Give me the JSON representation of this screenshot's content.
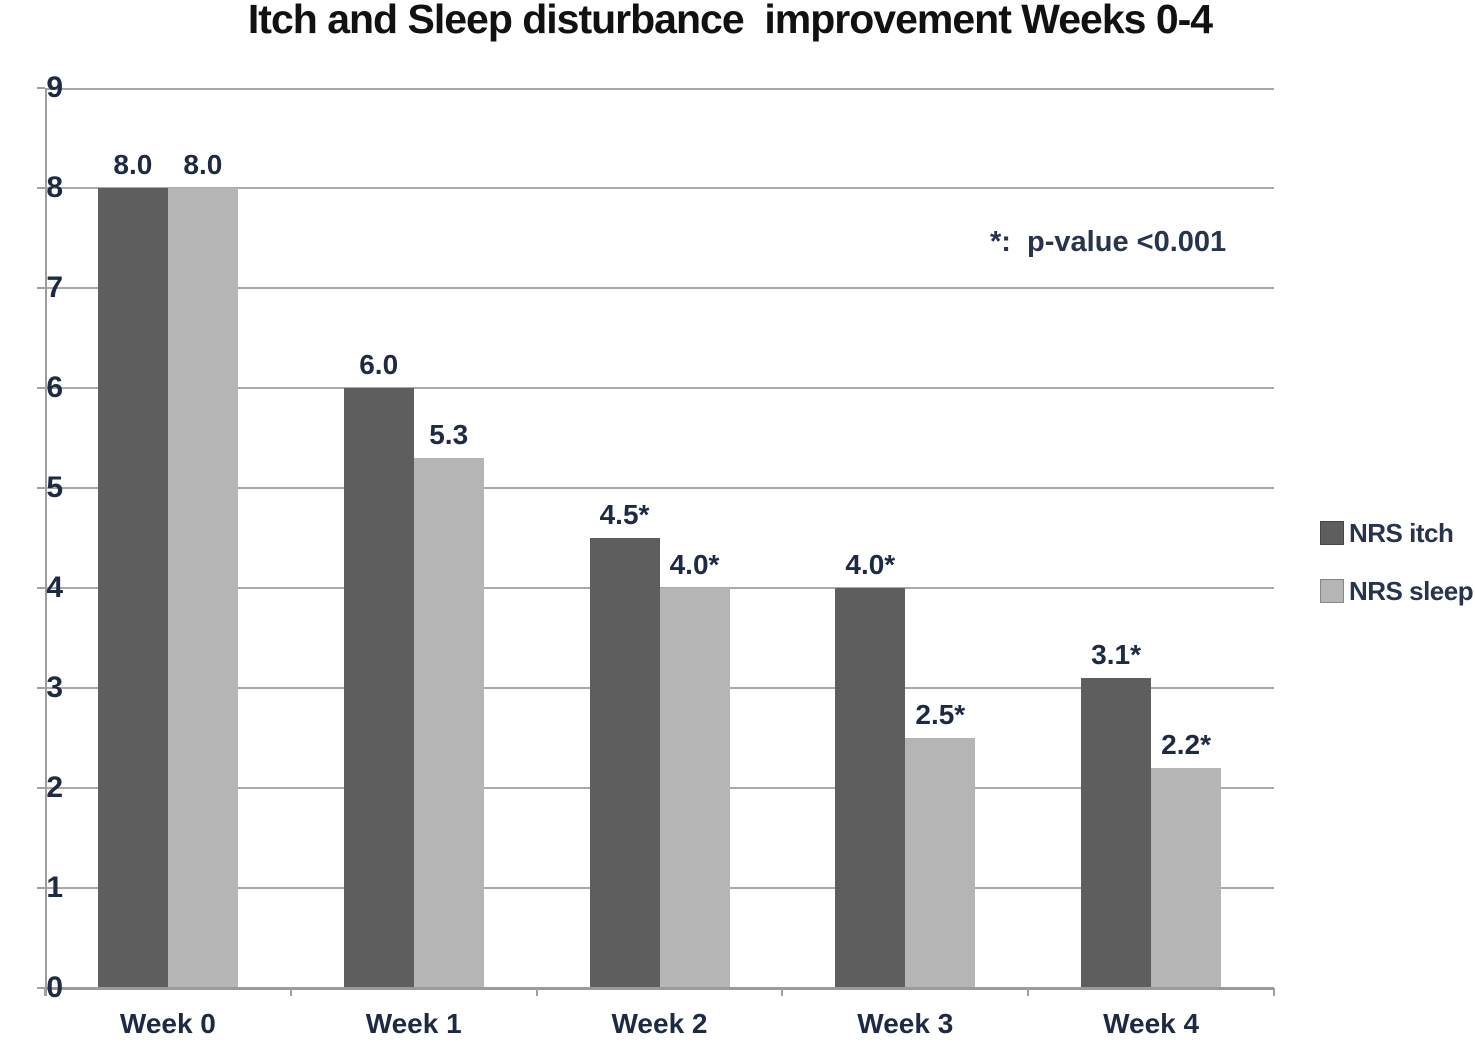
{
  "title": "Itch and Sleep disturbance  improvement Weeks 0-4",
  "annotation": "*:  p-value <0.001",
  "legend": {
    "items": [
      {
        "label": "NRS itch"
      },
      {
        "label": "NRS sleep"
      }
    ]
  },
  "colors": {
    "itch_bar": "#5e5e5e",
    "sleep_bar": "#b5b5b5",
    "gridline": "#a9a9a9",
    "axis": "#9a9a9a",
    "label_text": "#1e2a44",
    "title_text": "#111111"
  },
  "chart_data": {
    "type": "bar",
    "title": "Itch and Sleep disturbance improvement Weeks 0-4",
    "categories": [
      "Week 0",
      "Week 1",
      "Week 2",
      "Week 3",
      "Week 4"
    ],
    "series": [
      {
        "name": "NRS itch",
        "color": "#5e5e5e",
        "values": [
          8.0,
          6.0,
          4.5,
          4.0,
          3.1
        ],
        "labels": [
          "8.0",
          "6.0",
          "4.5*",
          "4.0*",
          "3.1*"
        ]
      },
      {
        "name": "NRS sleep",
        "color": "#b5b5b5",
        "values": [
          8.0,
          5.3,
          4.0,
          2.5,
          2.2
        ],
        "labels": [
          "8.0",
          "5.3",
          "4.0*",
          "2.5*",
          "2.2*"
        ]
      }
    ],
    "annotation": "*:  p-value <0.001",
    "xlabel": "",
    "ylabel": "",
    "ylim": [
      0,
      9
    ],
    "ytick_step": 1,
    "yticks": [
      "0",
      "1",
      "2",
      "3",
      "4",
      "5",
      "6",
      "7",
      "8",
      "9"
    ],
    "grid": "horizontal",
    "legend_position": "right"
  }
}
